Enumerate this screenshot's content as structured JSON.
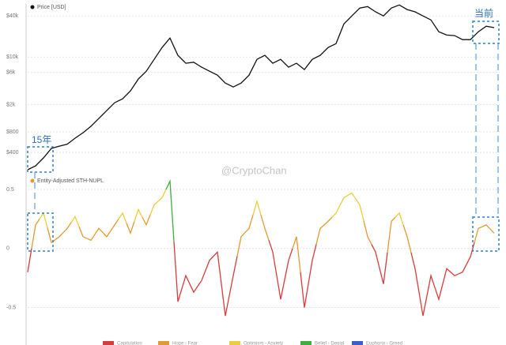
{
  "chart_data": [
    {
      "type": "line",
      "log": true,
      "grid": true,
      "series": [
        {
          "name": "Price [USD]",
          "color": "#111111",
          "values": [
            223,
            254,
            332,
            457,
            494,
            528,
            646,
            778,
            964,
            1257,
            1640,
            2140,
            2440,
            3190,
            4760,
            6200,
            9250,
            13800,
            19000,
            10600,
            8100,
            8400,
            7100,
            6200,
            5430,
            4160,
            3640,
            4160,
            5430,
            9250,
            10600,
            8100,
            9250,
            7100,
            8100,
            6550,
            9250,
            10600,
            13800,
            15700,
            30600,
            40000,
            52300,
            55000,
            46000,
            40000,
            52300,
            58000,
            49600,
            46000,
            40000,
            35000,
            23500,
            21000,
            20600,
            18000,
            18000,
            23500,
            28300,
            27000
          ]
        }
      ],
      "ylim": [
        195,
        60000
      ],
      "yticks": [
        {
          "value": 400,
          "label": "$400"
        },
        {
          "value": 800,
          "label": "$800"
        },
        {
          "value": 2000,
          "label": "$2k"
        },
        {
          "value": 6000,
          "label": "$6k"
        },
        {
          "value": 10000,
          "label": "$10k"
        },
        {
          "value": 40000,
          "label": "$40k"
        }
      ],
      "annotations": [
        "15年",
        "当前",
        "@CryptoChan"
      ]
    },
    {
      "type": "zone-line",
      "grid": true,
      "series": [
        {
          "name": "Entity-Adjusted STH-NUPL",
          "color": "#e39a30",
          "values": [
            -0.2,
            0.2,
            0.3,
            0.05,
            0.1,
            0.17,
            0.27,
            0.1,
            0.07,
            0.17,
            0.1,
            0.2,
            0.3,
            0.13,
            0.33,
            0.2,
            0.37,
            0.43,
            0.57,
            -0.45,
            -0.23,
            -0.37,
            -0.27,
            -0.1,
            -0.03,
            -0.57,
            -0.23,
            0.1,
            0.17,
            0.4,
            0.17,
            -0.03,
            -0.43,
            -0.1,
            0.1,
            -0.5,
            -0.1,
            0.17,
            0.23,
            0.3,
            0.43,
            0.47,
            0.37,
            0.1,
            -0.03,
            -0.3,
            0.23,
            0.3,
            0.1,
            -0.17,
            -0.57,
            -0.23,
            -0.43,
            -0.17,
            -0.23,
            -0.2,
            -0.07,
            0.17,
            0.2,
            0.13
          ]
        }
      ],
      "ylim": [
        -0.77,
        0.6
      ],
      "yticks": [
        0.5,
        0,
        -0.5
      ],
      "zones": [
        {
          "name": "Capitulation",
          "color": "#d63c3c",
          "range": [
            -1,
            0
          ]
        },
        {
          "name": "Hope - Fear",
          "color": "#e39a30",
          "range": [
            0,
            0.25
          ]
        },
        {
          "name": "Optimism - Anxiety",
          "color": "#eccd3c",
          "range": [
            0.25,
            0.5
          ]
        },
        {
          "name": "Belief - Denial",
          "color": "#3cb03c",
          "range": [
            0.5,
            0.75
          ]
        },
        {
          "name": "Euphoria - Greed",
          "color": "#3a5fcd",
          "range": [
            0.75,
            1
          ]
        }
      ]
    }
  ]
}
